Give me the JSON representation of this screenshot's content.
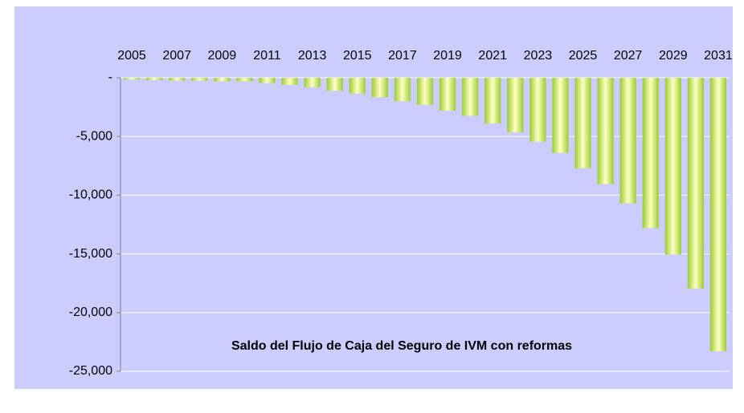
{
  "chart_data": {
    "type": "bar",
    "title": "Saldo del Flujo de Caja del Seguro de IVM con reformas",
    "categories": [
      "2005",
      null,
      "2007",
      null,
      "2009",
      null,
      "2011",
      null,
      "2013",
      null,
      "2015",
      null,
      "2017",
      null,
      "2019",
      null,
      "2021",
      null,
      "2023",
      null,
      "2025",
      null,
      "2027",
      null,
      "2029",
      null,
      "2031"
    ],
    "values": [
      -150,
      -200,
      -250,
      -250,
      -300,
      -300,
      -450,
      -600,
      -800,
      -1100,
      -1350,
      -1650,
      -2000,
      -2300,
      -2800,
      -3250,
      -3900,
      -4650,
      -5450,
      -6400,
      -7700,
      -9050,
      -10700,
      -12800,
      -15050,
      -17950,
      -23300
    ],
    "color": "#9acd32",
    "ylim": [
      -25000,
      0
    ],
    "yticks": [
      {
        "value": -25000,
        "label": "-25,000"
      },
      {
        "value": -20000,
        "label": "-20,000"
      },
      {
        "value": -15000,
        "label": "-15,000"
      },
      {
        "value": -10000,
        "label": "-10,000"
      },
      {
        "value": -5000,
        "label": "-5,000"
      },
      {
        "value": 0,
        "label": "-"
      }
    ],
    "grid": true
  }
}
